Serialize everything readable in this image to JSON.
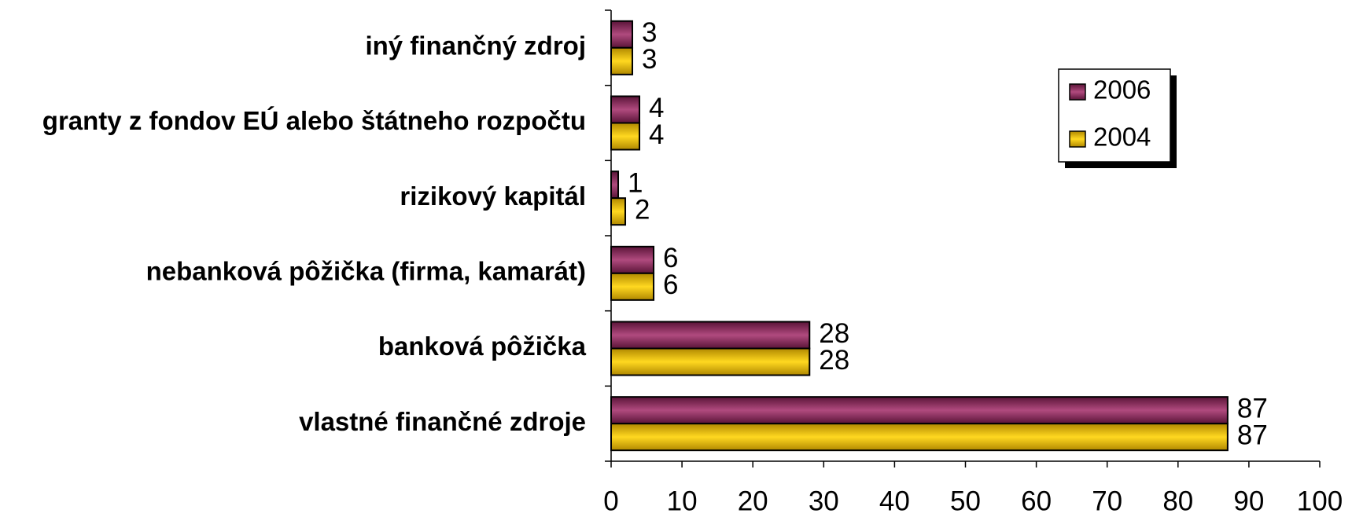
{
  "chart_data": {
    "type": "bar",
    "orientation": "horizontal",
    "categories": [
      "iný finančný zdroj",
      "granty z fondov EÚ alebo štátneho rozpočtu",
      "rizikový kapitál",
      "nebanková pôžička (firma, kamarát)",
      "banková pôžička",
      "vlastné finančné zdroje"
    ],
    "series": [
      {
        "name": "2006",
        "color": "#8b2d5c",
        "values": [
          3,
          4,
          1,
          6,
          28,
          87
        ]
      },
      {
        "name": "2004",
        "color": "#f2c200",
        "values": [
          3,
          4,
          2,
          6,
          28,
          87
        ]
      }
    ],
    "xlim": [
      0,
      100
    ],
    "xticks": [
      0,
      10,
      20,
      30,
      40,
      50,
      60,
      70,
      80,
      90,
      100
    ],
    "legend": "upper right",
    "grid": false
  }
}
